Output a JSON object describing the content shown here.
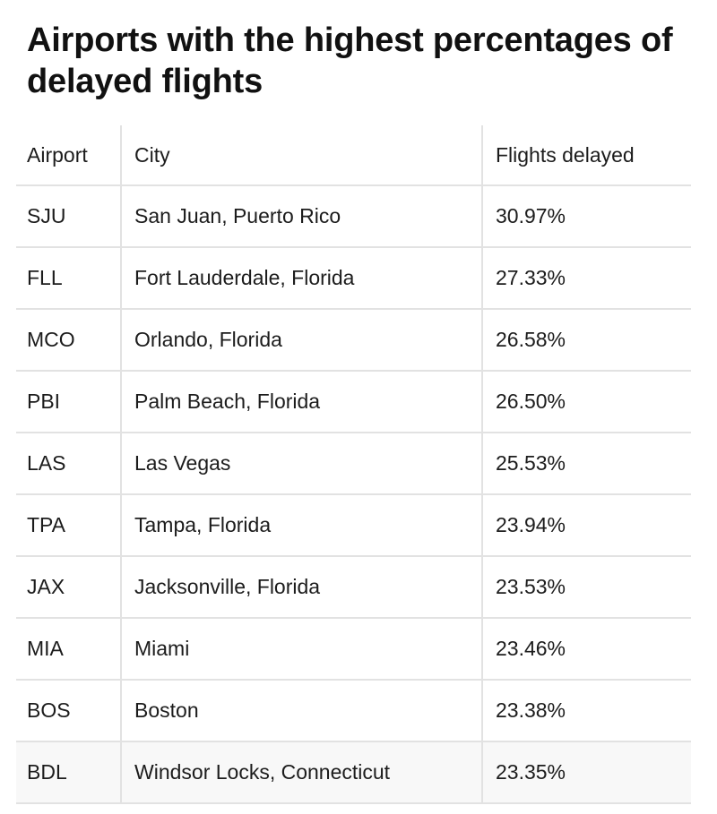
{
  "title": "Airports with the highest percentages of delayed flights",
  "table": {
    "headers": {
      "airport": "Airport",
      "city": "City",
      "delayed": "Flights delayed"
    },
    "rows": [
      {
        "airport": "SJU",
        "city": "San Juan, Puerto Rico",
        "delayed": "30.97%"
      },
      {
        "airport": "FLL",
        "city": "Fort Lauderdale, Florida",
        "delayed": "27.33%"
      },
      {
        "airport": "MCO",
        "city": "Orlando, Florida",
        "delayed": "26.58%"
      },
      {
        "airport": "PBI",
        "city": "Palm Beach, Florida",
        "delayed": "26.50%"
      },
      {
        "airport": "LAS",
        "city": "Las Vegas",
        "delayed": "25.53%"
      },
      {
        "airport": "TPA",
        "city": "Tampa, Florida",
        "delayed": "23.94%"
      },
      {
        "airport": "JAX",
        "city": "Jacksonville, Florida",
        "delayed": "23.53%"
      },
      {
        "airport": "MIA",
        "city": "Miami",
        "delayed": "23.46%"
      },
      {
        "airport": "BOS",
        "city": "Boston",
        "delayed": "23.38%"
      },
      {
        "airport": "BDL",
        "city": "Windsor Locks, Connecticut",
        "delayed": "23.35%"
      }
    ]
  }
}
